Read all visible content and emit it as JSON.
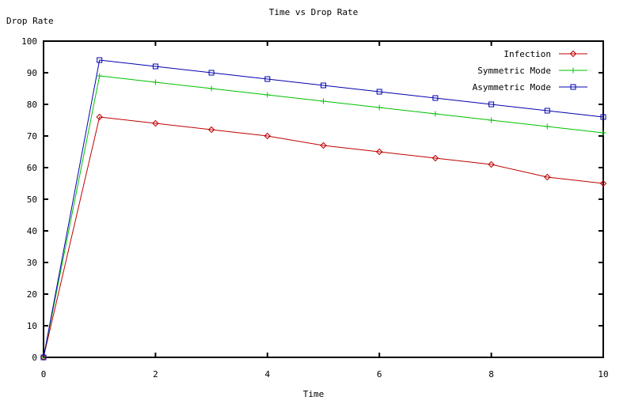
{
  "chart_data": {
    "type": "line",
    "title": "Time vs Drop Rate",
    "xlabel": "Time",
    "ylabel": "Drop Rate",
    "xlim": [
      0,
      10
    ],
    "ylim": [
      0,
      100
    ],
    "xticks": [
      0,
      2,
      4,
      6,
      8,
      10
    ],
    "yticks": [
      0,
      10,
      20,
      30,
      40,
      50,
      60,
      70,
      80,
      90,
      100
    ],
    "grid": false,
    "legend_position": "top-right",
    "x": [
      0,
      1,
      2,
      3,
      4,
      5,
      6,
      7,
      8,
      9,
      10
    ],
    "series": [
      {
        "name": "Infection",
        "color": "#c00000",
        "marker": "diamond",
        "values": [
          0,
          76,
          74,
          72,
          70,
          67,
          65,
          63,
          61,
          57,
          55
        ]
      },
      {
        "name": "Symmetric Mode",
        "color": "#00c000",
        "marker": "plus",
        "values": [
          0,
          89,
          87,
          85,
          83,
          81,
          79,
          77,
          75,
          73,
          71
        ]
      },
      {
        "name": "Asymmetric Mode",
        "color": "#0000b0",
        "marker": "square",
        "values": [
          0,
          94,
          92,
          90,
          88,
          86,
          84,
          82,
          80,
          78,
          76
        ]
      }
    ]
  }
}
